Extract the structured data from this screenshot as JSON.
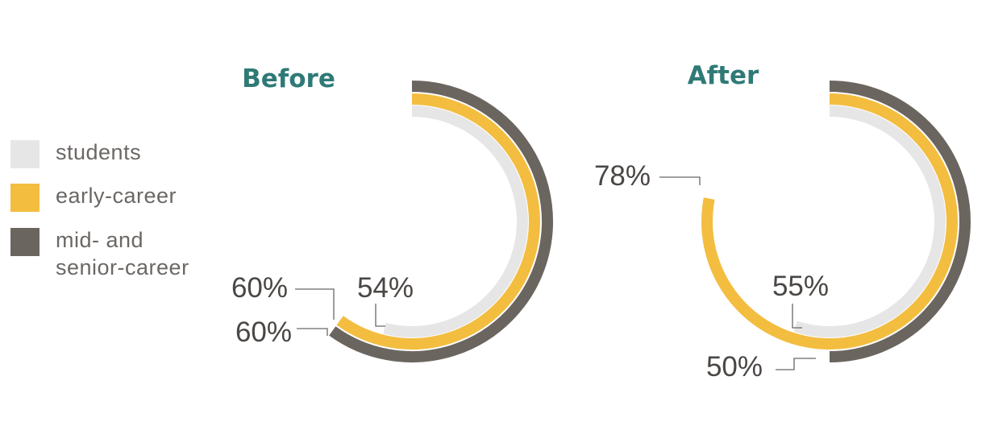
{
  "chart_data": {
    "type": "radial-bar",
    "colors": {
      "students": "#e6e6e6",
      "early-career": "#f3bd40",
      "mid-and-senior-career": "#6b6560",
      "title": "#2f7a76",
      "text": "#4a4644"
    },
    "legend": [
      {
        "key": "students",
        "label_lines": [
          "students"
        ]
      },
      {
        "key": "early-career",
        "label_lines": [
          "early-career"
        ]
      },
      {
        "key": "mid-and-senior-career",
        "label_lines": [
          "mid- and",
          "senior-career"
        ]
      }
    ],
    "panels": [
      {
        "title": "Before",
        "series": [
          {
            "key": "students",
            "value": 54,
            "label": "54%"
          },
          {
            "key": "early-career",
            "value": 60,
            "label": "60%"
          },
          {
            "key": "mid-and-senior-career",
            "value": 60,
            "label": "60%"
          }
        ]
      },
      {
        "title": "After",
        "series": [
          {
            "key": "students",
            "value": 55,
            "label": "55%"
          },
          {
            "key": "early-career",
            "value": 78,
            "label": "78%"
          },
          {
            "key": "mid-and-senior-career",
            "value": 50,
            "label": "50%"
          }
        ]
      }
    ]
  }
}
